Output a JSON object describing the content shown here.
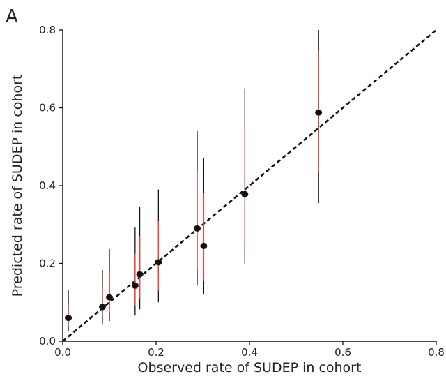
{
  "chart_data": {
    "type": "scatter",
    "panel_label": "A",
    "title": "",
    "xlabel": "Observed rate of SUDEP in cohort",
    "ylabel": "Predicted rate of SUDEP in cohort",
    "xlim": [
      0.0,
      0.8
    ],
    "ylim": [
      0.0,
      0.8
    ],
    "x_ticks": [
      0.0,
      0.2,
      0.4,
      0.6,
      0.8
    ],
    "y_ticks": [
      0.0,
      0.2,
      0.4,
      0.6,
      0.8
    ],
    "x_tick_labels": [
      "0.0",
      "0.2",
      "0.4",
      "0.6",
      "0.8"
    ],
    "y_tick_labels": [
      "0.0",
      "0.2",
      "0.4",
      "0.6",
      "0.8"
    ],
    "grid": false,
    "reference_line": {
      "style": "dashed",
      "from": [
        0.0,
        0.0
      ],
      "to": [
        0.8,
        0.8
      ]
    },
    "colors": {
      "point": "#111111",
      "outer_interval": "#111111",
      "inner_interval": "#e8483c",
      "reference_line": "#111111"
    },
    "points": [
      {
        "x": 0.012,
        "y": 0.06,
        "lo": 0.025,
        "hi": 0.132,
        "inner_lo": 0.038,
        "inner_hi": 0.095
      },
      {
        "x": 0.085,
        "y": 0.088,
        "lo": 0.045,
        "hi": 0.183,
        "inner_lo": 0.06,
        "inner_hi": 0.14
      },
      {
        "x": 0.1,
        "y": 0.113,
        "lo": 0.052,
        "hi": 0.237,
        "inner_lo": 0.072,
        "inner_hi": 0.18
      },
      {
        "x": 0.155,
        "y": 0.143,
        "lo": 0.066,
        "hi": 0.292,
        "inner_lo": 0.09,
        "inner_hi": 0.225
      },
      {
        "x": 0.165,
        "y": 0.172,
        "lo": 0.082,
        "hi": 0.345,
        "inner_lo": 0.11,
        "inner_hi": 0.27
      },
      {
        "x": 0.205,
        "y": 0.203,
        "lo": 0.1,
        "hi": 0.39,
        "inner_lo": 0.13,
        "inner_hi": 0.31
      },
      {
        "x": 0.288,
        "y": 0.29,
        "lo": 0.143,
        "hi": 0.54,
        "inner_lo": 0.185,
        "inner_hi": 0.44
      },
      {
        "x": 0.302,
        "y": 0.245,
        "lo": 0.12,
        "hi": 0.47,
        "inner_lo": 0.155,
        "inner_hi": 0.38
      },
      {
        "x": 0.39,
        "y": 0.378,
        "lo": 0.198,
        "hi": 0.65,
        "inner_lo": 0.245,
        "inner_hi": 0.55
      },
      {
        "x": 0.548,
        "y": 0.588,
        "lo": 0.355,
        "hi": 0.8,
        "inner_lo": 0.435,
        "inner_hi": 0.75
      }
    ]
  }
}
